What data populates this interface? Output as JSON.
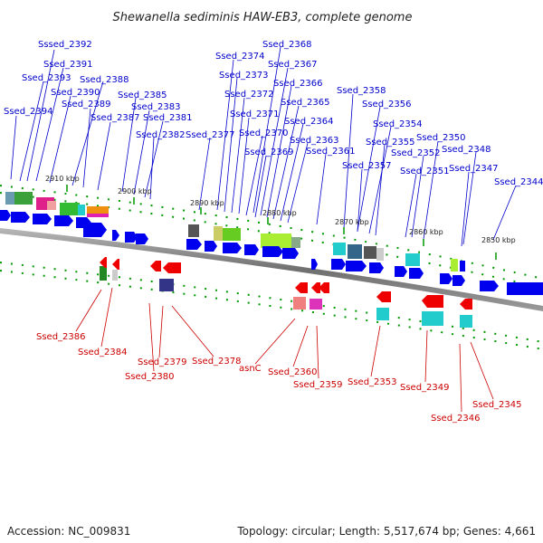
{
  "title": "Shewanella sediminis HAW-EB3, complete genome",
  "footer": {
    "accession": "Accession: NC_009831",
    "summary": "Topology: circular; Length: 5,517,674 bp; Genes: 4,661"
  },
  "colors": {
    "plus_strand": "#0000ee",
    "minus_strand": "#ee0000",
    "top_label": "#0000cc",
    "bottom_label": "#cc0000",
    "tick_mark": "#009900"
  },
  "ticks": [
    "2910 kbp",
    "2900 kbp",
    "2890 kbp",
    "2880 kbp",
    "2870 kbp",
    "2860 kbp",
    "2850 kbp"
  ],
  "top_labels": [
    "Sssed_2392",
    "Ssed_2391",
    "Ssed_2393",
    "Ssed_2390",
    "Ssed_2388",
    "Ssed_2389",
    "Ssed_2394",
    "Ssed_2387",
    "Ssed_2385",
    "Ssed_2383",
    "Ssed_2381",
    "Ssed_2382",
    "Ssed_2368",
    "Ssed_2374",
    "Ssed_2367",
    "Ssed_2373",
    "Ssed_2366",
    "Ssed_2372",
    "Ssed_2365",
    "Ssed_2371",
    "Ssed_2364",
    "Ssed_2377",
    "Ssed_2370",
    "Ssed_2363",
    "Ssed_2369",
    "Ssed_2361",
    "Ssed_2358",
    "Ssed_2356",
    "Ssed_2354",
    "Ssed_2355",
    "Ssed_2350",
    "Ssed_2352",
    "Ssed_2348",
    "Ssed_2357",
    "Ssed_2351",
    "Ssed_2347",
    "Ssed_2344"
  ],
  "bottom_labels": [
    "Ssed_2386",
    "Ssed_2384",
    "Ssed_2379",
    "Ssed_2380",
    "Ssed_2378",
    "asnC",
    "Ssed_2360",
    "Ssed_2359",
    "Ssed_2353",
    "Ssed_2349",
    "Ssed_2346",
    "Ssed_2345"
  ]
}
